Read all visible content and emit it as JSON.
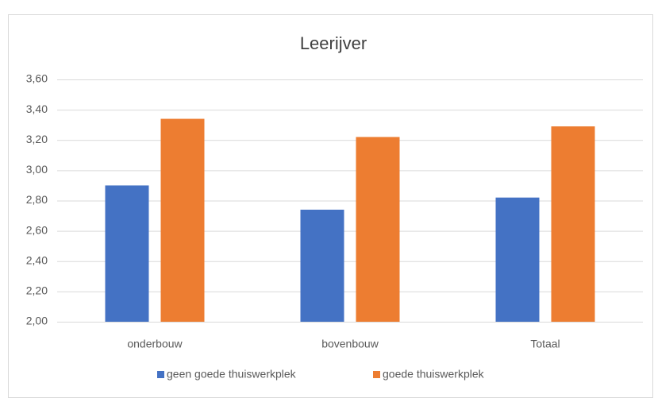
{
  "chart_data": {
    "type": "bar",
    "title": "Leerijver",
    "categories": [
      "onderbouw",
      "bovenbouw",
      "Totaal"
    ],
    "series": [
      {
        "name": "geen goede thuiswerkplek",
        "color": "#4472c4",
        "values": [
          2.9,
          2.74,
          2.82
        ]
      },
      {
        "name": "goede thuiswerkplek",
        "color": "#ed7d31",
        "values": [
          3.34,
          3.22,
          3.29
        ]
      }
    ],
    "ylim": [
      2,
      3.6
    ],
    "yticks": [
      {
        "value": 2,
        "label": "2,00"
      },
      {
        "value": 2.2,
        "label": "2,20"
      },
      {
        "value": 2.4,
        "label": "2,40"
      },
      {
        "value": 2.6,
        "label": "2,60"
      },
      {
        "value": 2.8,
        "label": "2,80"
      },
      {
        "value": 3,
        "label": "3,00"
      },
      {
        "value": 3.2,
        "label": "3,20"
      },
      {
        "value": 3.4,
        "label": "3,40"
      },
      {
        "value": 3.6,
        "label": "3,60"
      }
    ],
    "grid": true,
    "legend": "bottom"
  }
}
